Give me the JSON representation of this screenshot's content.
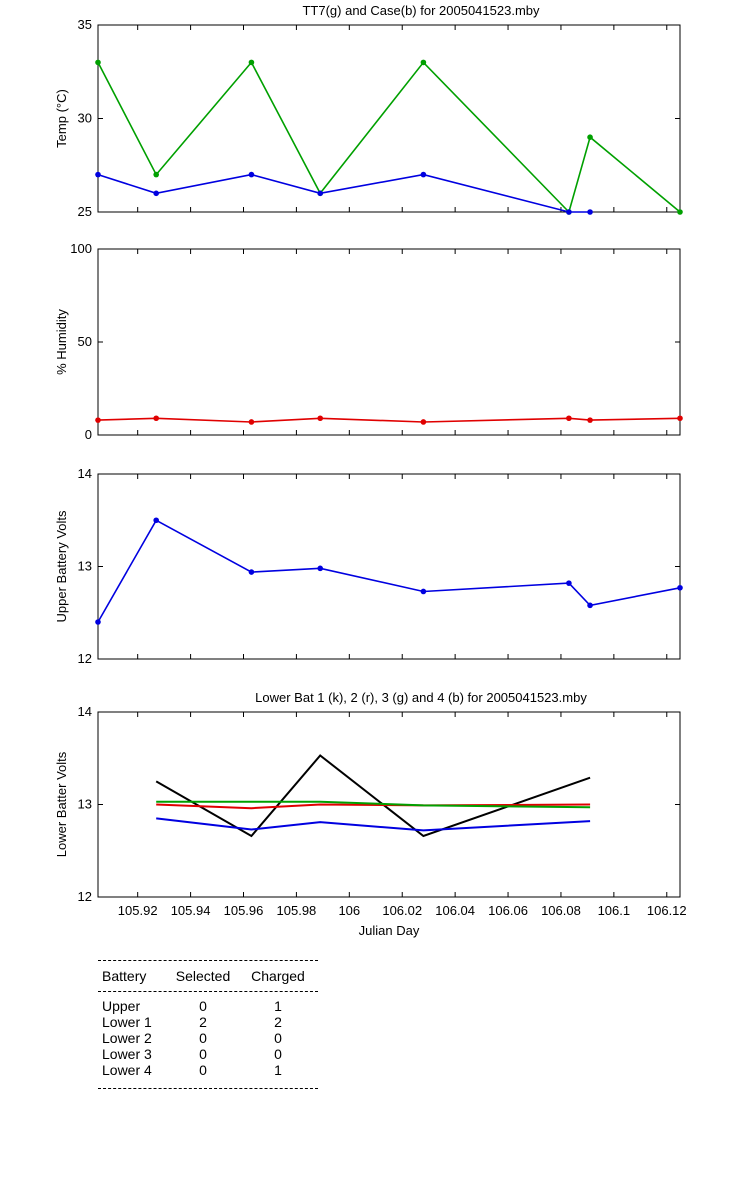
{
  "chart_data": [
    {
      "type": "line",
      "title": "TT7(g) and Case(b) for 2005041523.mby",
      "xlabel": "",
      "ylabel": "Temp  (°C)",
      "xlim": [
        105.905,
        106.125
      ],
      "ylim": [
        25,
        35
      ],
      "yticks": [
        25,
        30,
        35
      ],
      "x": [
        105.905,
        105.927,
        105.963,
        105.989,
        106.028,
        106.083,
        106.091,
        106.125
      ],
      "series": [
        {
          "name": "TT7",
          "color": "#00a000",
          "values": [
            33,
            27,
            33,
            26,
            33,
            25,
            29,
            25
          ]
        },
        {
          "name": "Case",
          "color": "#0000e0",
          "values": [
            27,
            26,
            27,
            26,
            27,
            25,
            25,
            null
          ]
        }
      ]
    },
    {
      "type": "line",
      "title": "",
      "xlabel": "",
      "ylabel": "% Humidity",
      "xlim": [
        105.905,
        106.125
      ],
      "ylim": [
        0,
        100
      ],
      "yticks": [
        0,
        50,
        100
      ],
      "x": [
        105.905,
        105.927,
        105.963,
        105.989,
        106.028,
        106.083,
        106.091,
        106.125
      ],
      "series": [
        {
          "name": "Humidity",
          "color": "#e00000",
          "values": [
            8,
            9,
            7,
            9,
            7,
            9,
            8,
            9
          ]
        }
      ]
    },
    {
      "type": "line",
      "title": "",
      "xlabel": "",
      "ylabel": "Upper Battery Volts",
      "xlim": [
        105.905,
        106.125
      ],
      "ylim": [
        12,
        14
      ],
      "yticks": [
        12,
        13,
        14
      ],
      "x": [
        105.905,
        105.927,
        105.963,
        105.989,
        106.028,
        106.083,
        106.091,
        106.125
      ],
      "series": [
        {
          "name": "Upper Battery",
          "color": "#0000e0",
          "values": [
            12.4,
            13.5,
            12.94,
            12.98,
            12.73,
            12.82,
            12.58,
            12.77
          ]
        }
      ]
    },
    {
      "type": "line",
      "title": "Lower Bat 1 (k), 2 (r), 3 (g) and 4 (b) for 2005041523.mby",
      "xlabel": "Julian Day",
      "ylabel": "Lower Batter Volts",
      "xlim": [
        105.905,
        106.125
      ],
      "ylim": [
        12,
        14
      ],
      "yticks": [
        12,
        13,
        14
      ],
      "xticks": [
        "105.92",
        "105.94",
        "105.96",
        "105.98",
        "106",
        "106.02",
        "106.04",
        "106.06",
        "106.08",
        "106.1",
        "106.12"
      ],
      "x": [
        105.927,
        105.963,
        105.989,
        106.028,
        106.091
      ],
      "series": [
        {
          "name": "Lower Bat 1",
          "color": "#000000",
          "values": [
            13.25,
            12.66,
            13.53,
            12.66,
            13.29
          ]
        },
        {
          "name": "Lower Bat 2",
          "color": "#e00000",
          "values": [
            13.0,
            12.96,
            13.0,
            12.99,
            13.0
          ]
        },
        {
          "name": "Lower Bat 3",
          "color": "#00a000",
          "values": [
            13.03,
            13.03,
            13.03,
            12.99,
            12.97
          ]
        },
        {
          "name": "Lower Bat 4",
          "color": "#0000e0",
          "values": [
            12.85,
            12.73,
            12.81,
            12.72,
            12.82
          ]
        }
      ]
    }
  ],
  "battery_table": {
    "headers": {
      "battery": "Battery",
      "selected": "Selected",
      "charged": "Charged"
    },
    "rows": [
      {
        "battery": "Upper",
        "selected": "0",
        "charged": "1"
      },
      {
        "battery": "Lower 1",
        "selected": "2",
        "charged": "2"
      },
      {
        "battery": "Lower 2",
        "selected": "0",
        "charged": "0"
      },
      {
        "battery": "Lower 3",
        "selected": "0",
        "charged": "0"
      },
      {
        "battery": "Lower 4",
        "selected": "0",
        "charged": "1"
      }
    ]
  }
}
